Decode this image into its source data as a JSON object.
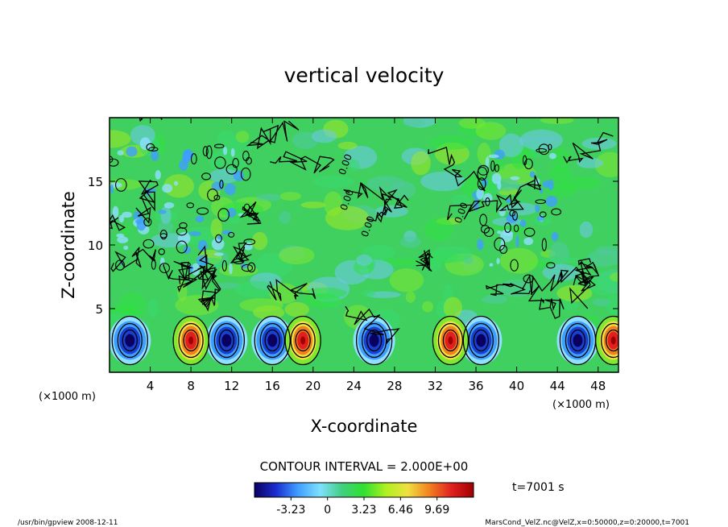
{
  "chart_data": {
    "type": "heatmap",
    "title": "vertical velocity",
    "xlabel": "X-coordinate",
    "ylabel": "Z-coordinate",
    "x_unit": "(×1000 m)",
    "x_unit_right": "(×1000 m)",
    "xlim": [
      0,
      50
    ],
    "ylim": [
      0,
      20
    ],
    "x_ticks": [
      4,
      8,
      12,
      16,
      20,
      24,
      28,
      32,
      36,
      40,
      44,
      48
    ],
    "y_ticks": [
      5,
      10,
      15
    ],
    "contour_interval_text": "CONTOUR INTERVAL = 2.000E+00",
    "contour_labels": [
      "0.00",
      "0.00",
      "0.00",
      "0.00"
    ],
    "time_text": "t=7001 s",
    "colorbar": {
      "range": [
        -6.46,
        12.92
      ],
      "ticks": [
        -3.23,
        0,
        3.23,
        6.46,
        9.69
      ],
      "tick_labels": [
        "-3.23",
        "0",
        "3.23",
        "6.46",
        "9.69"
      ],
      "colors": [
        "#0a0060",
        "#1a2fd0",
        "#3fa0ff",
        "#7fe0ff",
        "#40d080",
        "#30e030",
        "#b0f020",
        "#f0e040",
        "#f08020",
        "#e02020",
        "#a00000"
      ]
    },
    "features": {
      "updraft_centers_x": [
        8,
        19,
        33.5,
        49.5
      ],
      "downdraft_centers_x": [
        2,
        11.5,
        16,
        26,
        36.5,
        46
      ],
      "feature_z": 2.5
    }
  },
  "footer": {
    "left": "/usr/bin/gpview   2008-12-11",
    "right": "MarsCond_VelZ.nc@VelZ,x=0:50000,z=0:20000,t=7001"
  }
}
